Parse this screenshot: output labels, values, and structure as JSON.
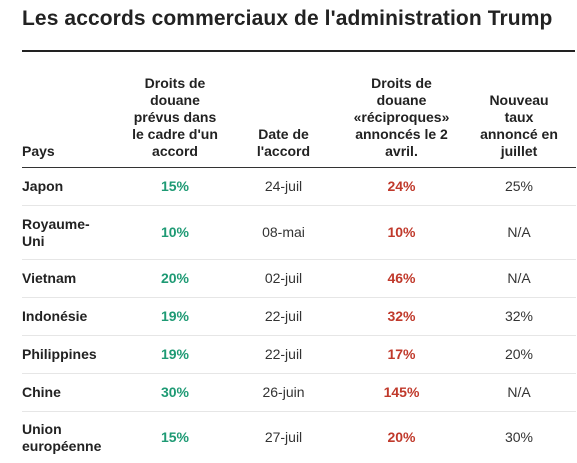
{
  "title": "Les accords commerciaux de l'administration Trump",
  "colors": {
    "agreed_rate": "#1e9a74",
    "reciprocal_rate": "#c0392b",
    "text": "#222222"
  },
  "table": {
    "headers": {
      "country": "Pays",
      "agreed_rate": "Droits de douane prévus dans le cadre d'un accord",
      "agreement_date": "Date de l'accord",
      "reciprocal_rate": "Droits de douane «réciproques» annoncés le 2 avril.",
      "july_rate": "Nouveau taux annoncé en juillet"
    },
    "rows": [
      {
        "country": "Japon",
        "agreed_rate": "15%",
        "agreement_date": "24-juil",
        "reciprocal_rate": "24%",
        "july_rate": "25%"
      },
      {
        "country": "Royaume-Uni",
        "agreed_rate": "10%",
        "agreement_date": "08-mai",
        "reciprocal_rate": "10%",
        "july_rate": "N/A"
      },
      {
        "country": "Vietnam",
        "agreed_rate": "20%",
        "agreement_date": "02-juil",
        "reciprocal_rate": "46%",
        "july_rate": "N/A"
      },
      {
        "country": "Indonésie",
        "agreed_rate": "19%",
        "agreement_date": "22-juil",
        "reciprocal_rate": "32%",
        "july_rate": "32%"
      },
      {
        "country": "Philippines",
        "agreed_rate": "19%",
        "agreement_date": "22-juil",
        "reciprocal_rate": "17%",
        "july_rate": "20%"
      },
      {
        "country": "Chine",
        "agreed_rate": "30%",
        "agreement_date": "26-juin",
        "reciprocal_rate": "145%",
        "july_rate": "N/A"
      },
      {
        "country": "Union européenne",
        "agreed_rate": "15%",
        "agreement_date": "27-juil",
        "reciprocal_rate": "20%",
        "july_rate": "30%"
      }
    ]
  }
}
